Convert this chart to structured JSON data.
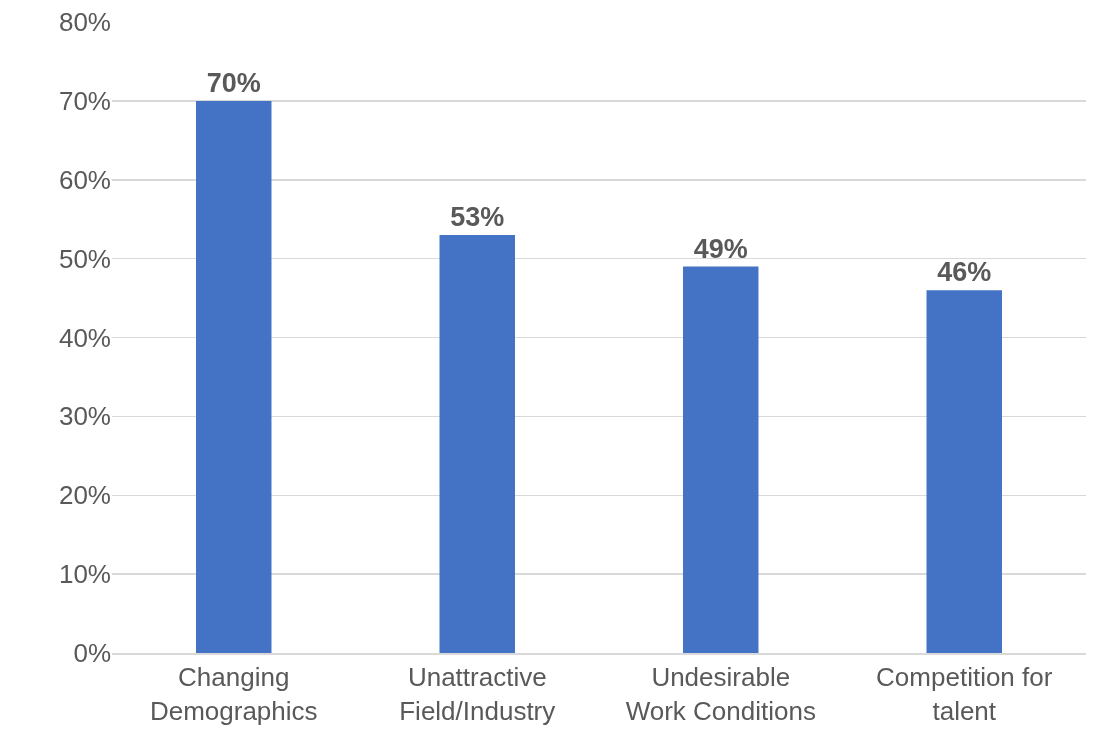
{
  "chart_data": {
    "type": "bar",
    "categories": [
      "Changing Demographics",
      "Unattractive Field/Industry",
      "Undesirable Work Conditions",
      "Competition for talent"
    ],
    "values": [
      70,
      53,
      49,
      46
    ],
    "value_labels": [
      "70%",
      "53%",
      "49%",
      "46%"
    ],
    "color": "#4472c4",
    "ylim": [
      0,
      80
    ],
    "yticks": [
      {
        "value": 0,
        "label": "0%"
      },
      {
        "value": 10,
        "label": "10%"
      },
      {
        "value": 20,
        "label": "20%"
      },
      {
        "value": 30,
        "label": "30%"
      },
      {
        "value": 40,
        "label": "40%"
      },
      {
        "value": 50,
        "label": "50%"
      },
      {
        "value": 60,
        "label": "60%"
      },
      {
        "value": 70,
        "label": "70%"
      },
      {
        "value": 80,
        "label": "80%"
      }
    ],
    "grid": "y"
  }
}
